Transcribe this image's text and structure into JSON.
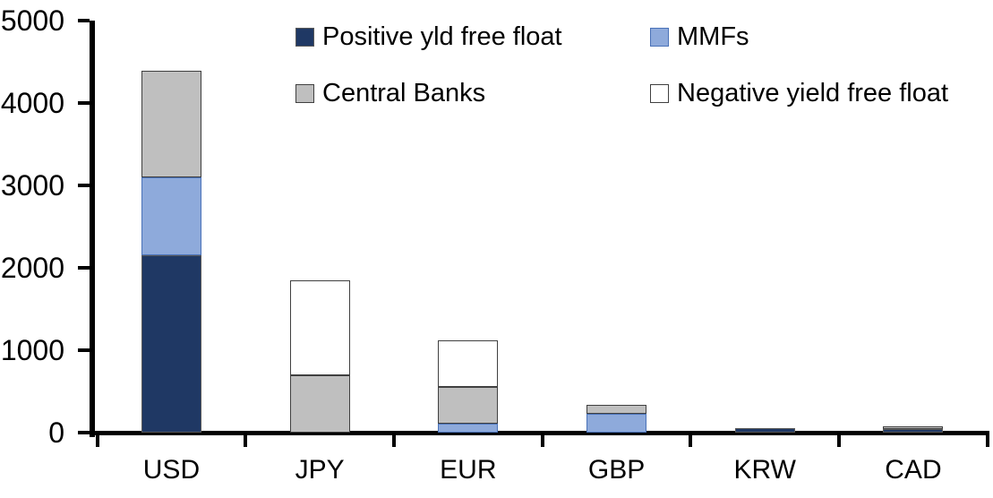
{
  "chart_data": {
    "type": "bar",
    "stacked": true,
    "title": "",
    "xlabel": "",
    "ylabel": "",
    "categories": [
      "USD",
      "JPY",
      "EUR",
      "GBP",
      "KRW",
      "CAD"
    ],
    "series": [
      {
        "name": "Positive yld free float",
        "color": "#1F3864",
        "border_color": "#595959",
        "values": [
          2150,
          0,
          0,
          0,
          50,
          45
        ]
      },
      {
        "name": "MMFs",
        "color": "#8EAADB",
        "border_color": "#4A72B8",
        "values": [
          950,
          0,
          110,
          230,
          0,
          0
        ]
      },
      {
        "name": "Central Banks",
        "color": "#BFBFBF",
        "border_color": "#404040",
        "values": [
          1300,
          700,
          440,
          105,
          0,
          30
        ]
      },
      {
        "name": "Negative yield free float",
        "color": "#FFFFFF",
        "border_color": "#404040",
        "values": [
          0,
          1150,
          570,
          0,
          0,
          0
        ]
      }
    ],
    "totals_by_category": [
      4400,
      1850,
      1120,
      335,
      50,
      75
    ],
    "ylim": [
      0,
      5000
    ],
    "yticks": [
      0,
      1000,
      2000,
      3000,
      4000,
      5000
    ],
    "grid": false,
    "legend_position": "top-inside",
    "axis_color": "#000000",
    "text_color": "#000000",
    "background_color": "#FFFFFF"
  }
}
